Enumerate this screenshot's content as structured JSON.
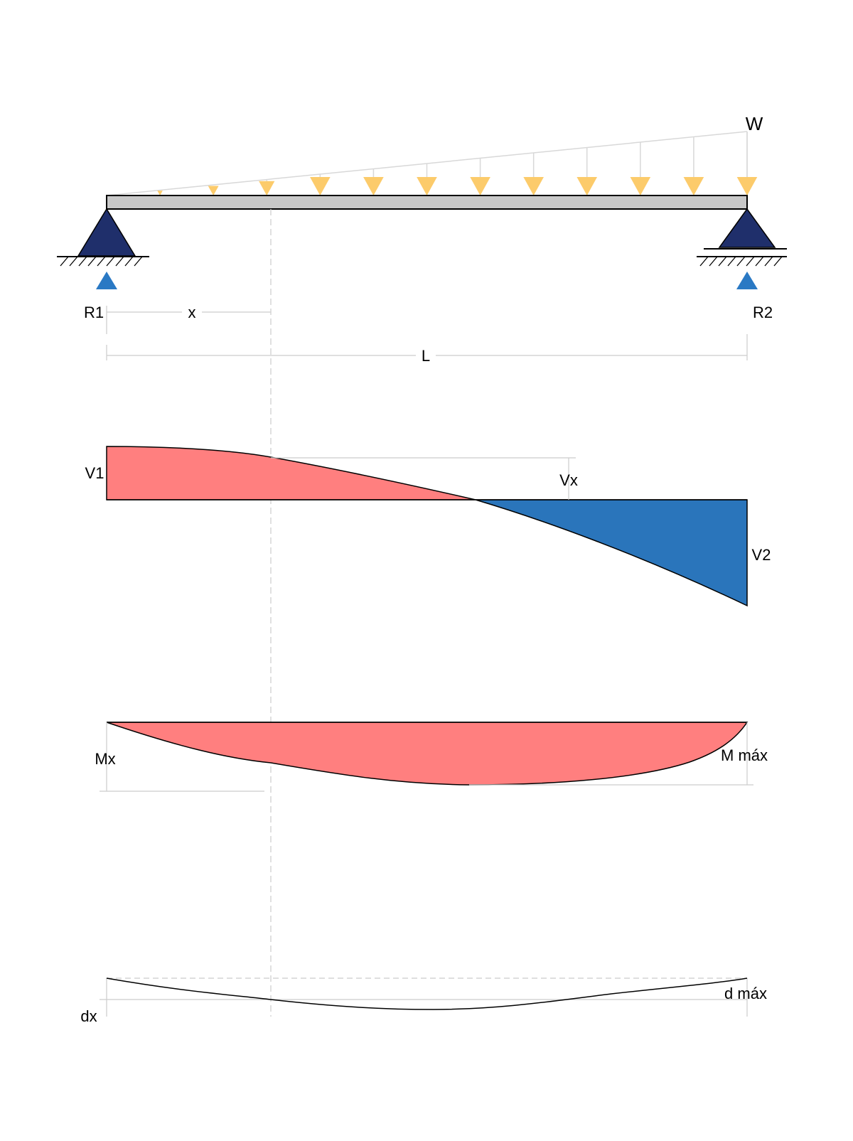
{
  "labels": {
    "load": "W",
    "reaction_left": "R1",
    "reaction_right": "R2",
    "position": "x",
    "span": "L",
    "shear_left": "V1",
    "shear_x": "Vx",
    "shear_right": "V2",
    "moment_x": "Mx",
    "moment_max": "M máx",
    "deflection_x": "dx",
    "deflection_max": "d máx"
  },
  "colors": {
    "support": "#1f2f6b",
    "reaction_arrow": "#2a79c4",
    "load_arrow": "#fccb6b",
    "beam": "#c8c8c8",
    "positive_fill": "#ff7f7f",
    "negative_fill": "#2a75bb",
    "guide_line": "#cccccc"
  },
  "icons": {
    "left_support": "pin-support-icon",
    "right_support": "roller-support-icon",
    "reaction": "up-arrow-icon",
    "load": "down-arrow-icon"
  }
}
